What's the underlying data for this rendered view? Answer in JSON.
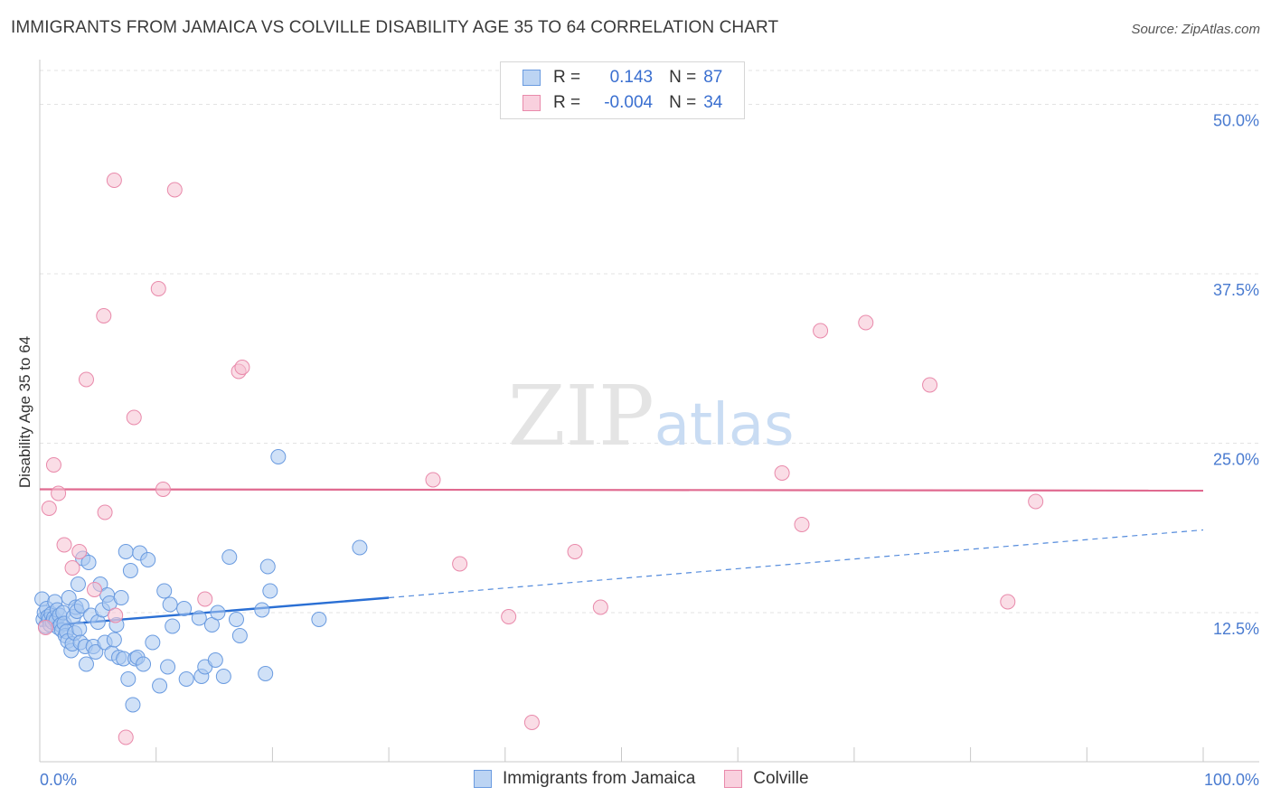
{
  "header": {
    "title": "IMMIGRANTS FROM JAMAICA VS COLVILLE DISABILITY AGE 35 TO 64 CORRELATION CHART",
    "source": "Source: ZipAtlas.com"
  },
  "legend": {
    "row1": {
      "r_label": "R =",
      "r_value": "0.143",
      "n_label": "N =",
      "n_value": "87"
    },
    "row2": {
      "r_label": "R =",
      "r_value": "-0.004",
      "n_label": "N =",
      "n_value": "34"
    }
  },
  "colors": {
    "blue_fill": "#a9c8f0",
    "blue_stroke": "#6a9be0",
    "blue_line": "#2a6fd4",
    "pink_fill": "#f6c1d2",
    "pink_stroke": "#e98aab",
    "pink_line": "#e06a90",
    "tick_text": "#4a7bd0",
    "grid": "#e3e3e3"
  },
  "chart_data": {
    "type": "scatter",
    "title": "IMMIGRANTS FROM JAMAICA VS COLVILLE DISABILITY AGE 35 TO 64 CORRELATION CHART",
    "xlabel": "",
    "ylabel": "Disability Age 35 to 64",
    "x_tick_labels": [
      "0.0%",
      "100.0%"
    ],
    "y_tick_labels": [
      "12.5%",
      "25.0%",
      "37.5%",
      "50.0%"
    ],
    "y_ticks": [
      12.5,
      25.0,
      37.5,
      50.0
    ],
    "xlim": [
      0,
      100
    ],
    "ylim": [
      1.5,
      52.5
    ],
    "watermark": "ZIPatlas",
    "series": [
      {
        "name": "Immigrants from Jamaica",
        "R": 0.143,
        "N": 87,
        "trend": {
          "x0": 0,
          "y0": 11.5,
          "x1": 30,
          "y1": 13.6,
          "dashed_to_x": 100,
          "dashed_to_y": 18.6
        },
        "points": [
          [
            0.2,
            13.5
          ],
          [
            0.3,
            12.0
          ],
          [
            0.4,
            12.5
          ],
          [
            0.5,
            11.5
          ],
          [
            0.6,
            12.8
          ],
          [
            0.7,
            12.2
          ],
          [
            0.8,
            12.0
          ],
          [
            0.9,
            11.6
          ],
          [
            1.0,
            12.4
          ],
          [
            1.1,
            11.8
          ],
          [
            1.2,
            12.1
          ],
          [
            1.3,
            13.3
          ],
          [
            1.4,
            11.9
          ],
          [
            1.5,
            12.7
          ],
          [
            1.6,
            11.4
          ],
          [
            1.7,
            12.3
          ],
          [
            1.8,
            11.6
          ],
          [
            1.9,
            11.2
          ],
          [
            2.0,
            12.5
          ],
          [
            2.1,
            11.7
          ],
          [
            2.2,
            10.8
          ],
          [
            2.3,
            11.1
          ],
          [
            2.4,
            10.4
          ],
          [
            2.5,
            13.6
          ],
          [
            2.7,
            9.7
          ],
          [
            2.8,
            10.2
          ],
          [
            2.9,
            12.2
          ],
          [
            3.0,
            11.0
          ],
          [
            3.1,
            12.9
          ],
          [
            3.2,
            12.6
          ],
          [
            3.3,
            14.6
          ],
          [
            3.4,
            11.3
          ],
          [
            3.5,
            10.3
          ],
          [
            3.6,
            13.0
          ],
          [
            3.7,
            16.5
          ],
          [
            3.9,
            10.0
          ],
          [
            4.0,
            8.7
          ],
          [
            4.2,
            16.2
          ],
          [
            4.4,
            12.3
          ],
          [
            4.6,
            10.0
          ],
          [
            4.8,
            9.6
          ],
          [
            5.0,
            11.8
          ],
          [
            5.2,
            14.6
          ],
          [
            5.4,
            12.7
          ],
          [
            5.6,
            10.3
          ],
          [
            5.8,
            13.8
          ],
          [
            6.0,
            13.2
          ],
          [
            6.2,
            9.5
          ],
          [
            6.4,
            10.5
          ],
          [
            6.6,
            11.6
          ],
          [
            6.8,
            9.2
          ],
          [
            7.0,
            13.6
          ],
          [
            7.2,
            9.1
          ],
          [
            7.4,
            17.0
          ],
          [
            7.6,
            7.6
          ],
          [
            7.8,
            15.6
          ],
          [
            8.0,
            5.7
          ],
          [
            8.2,
            9.1
          ],
          [
            8.4,
            9.2
          ],
          [
            8.6,
            16.9
          ],
          [
            8.9,
            8.7
          ],
          [
            9.3,
            16.4
          ],
          [
            9.7,
            10.3
          ],
          [
            10.3,
            7.1
          ],
          [
            10.7,
            14.1
          ],
          [
            11.0,
            8.5
          ],
          [
            11.2,
            13.1
          ],
          [
            11.4,
            11.5
          ],
          [
            12.4,
            12.8
          ],
          [
            12.6,
            7.6
          ],
          [
            13.7,
            12.1
          ],
          [
            13.9,
            7.8
          ],
          [
            14.2,
            8.5
          ],
          [
            14.8,
            11.6
          ],
          [
            15.1,
            9.0
          ],
          [
            15.3,
            12.5
          ],
          [
            15.8,
            7.8
          ],
          [
            16.3,
            16.6
          ],
          [
            16.9,
            12.0
          ],
          [
            17.2,
            10.8
          ],
          [
            19.1,
            12.7
          ],
          [
            19.4,
            8.0
          ],
          [
            19.6,
            15.9
          ],
          [
            19.8,
            14.1
          ],
          [
            20.5,
            24.0
          ],
          [
            27.5,
            17.3
          ],
          [
            24.0,
            12.0
          ]
        ]
      },
      {
        "name": "Colville",
        "R": -0.004,
        "N": 34,
        "trend": {
          "x0": 0,
          "y0": 21.6,
          "x1": 100,
          "y1": 21.5
        },
        "points": [
          [
            0.5,
            11.4
          ],
          [
            0.8,
            20.2
          ],
          [
            1.2,
            23.4
          ],
          [
            1.6,
            21.3
          ],
          [
            2.1,
            17.5
          ],
          [
            2.8,
            15.8
          ],
          [
            3.4,
            17.0
          ],
          [
            4.0,
            29.7
          ],
          [
            4.7,
            14.2
          ],
          [
            5.5,
            34.4
          ],
          [
            5.6,
            19.9
          ],
          [
            6.4,
            44.4
          ],
          [
            6.5,
            12.3
          ],
          [
            7.4,
            3.3
          ],
          [
            8.1,
            26.9
          ],
          [
            10.2,
            36.4
          ],
          [
            10.6,
            21.6
          ],
          [
            11.6,
            43.7
          ],
          [
            14.2,
            13.5
          ],
          [
            17.1,
            30.3
          ],
          [
            17.4,
            30.6
          ],
          [
            33.8,
            22.3
          ],
          [
            36.1,
            16.1
          ],
          [
            40.3,
            12.2
          ],
          [
            42.3,
            4.4
          ],
          [
            46.0,
            17.0
          ],
          [
            48.2,
            12.9
          ],
          [
            63.8,
            22.8
          ],
          [
            65.5,
            19.0
          ],
          [
            67.1,
            33.3
          ],
          [
            71.0,
            33.9
          ],
          [
            76.5,
            29.3
          ],
          [
            83.2,
            13.3
          ],
          [
            85.6,
            20.7
          ]
        ]
      }
    ]
  },
  "bottom_legend": {
    "item1": "Immigrants from Jamaica",
    "item2": "Colville"
  }
}
